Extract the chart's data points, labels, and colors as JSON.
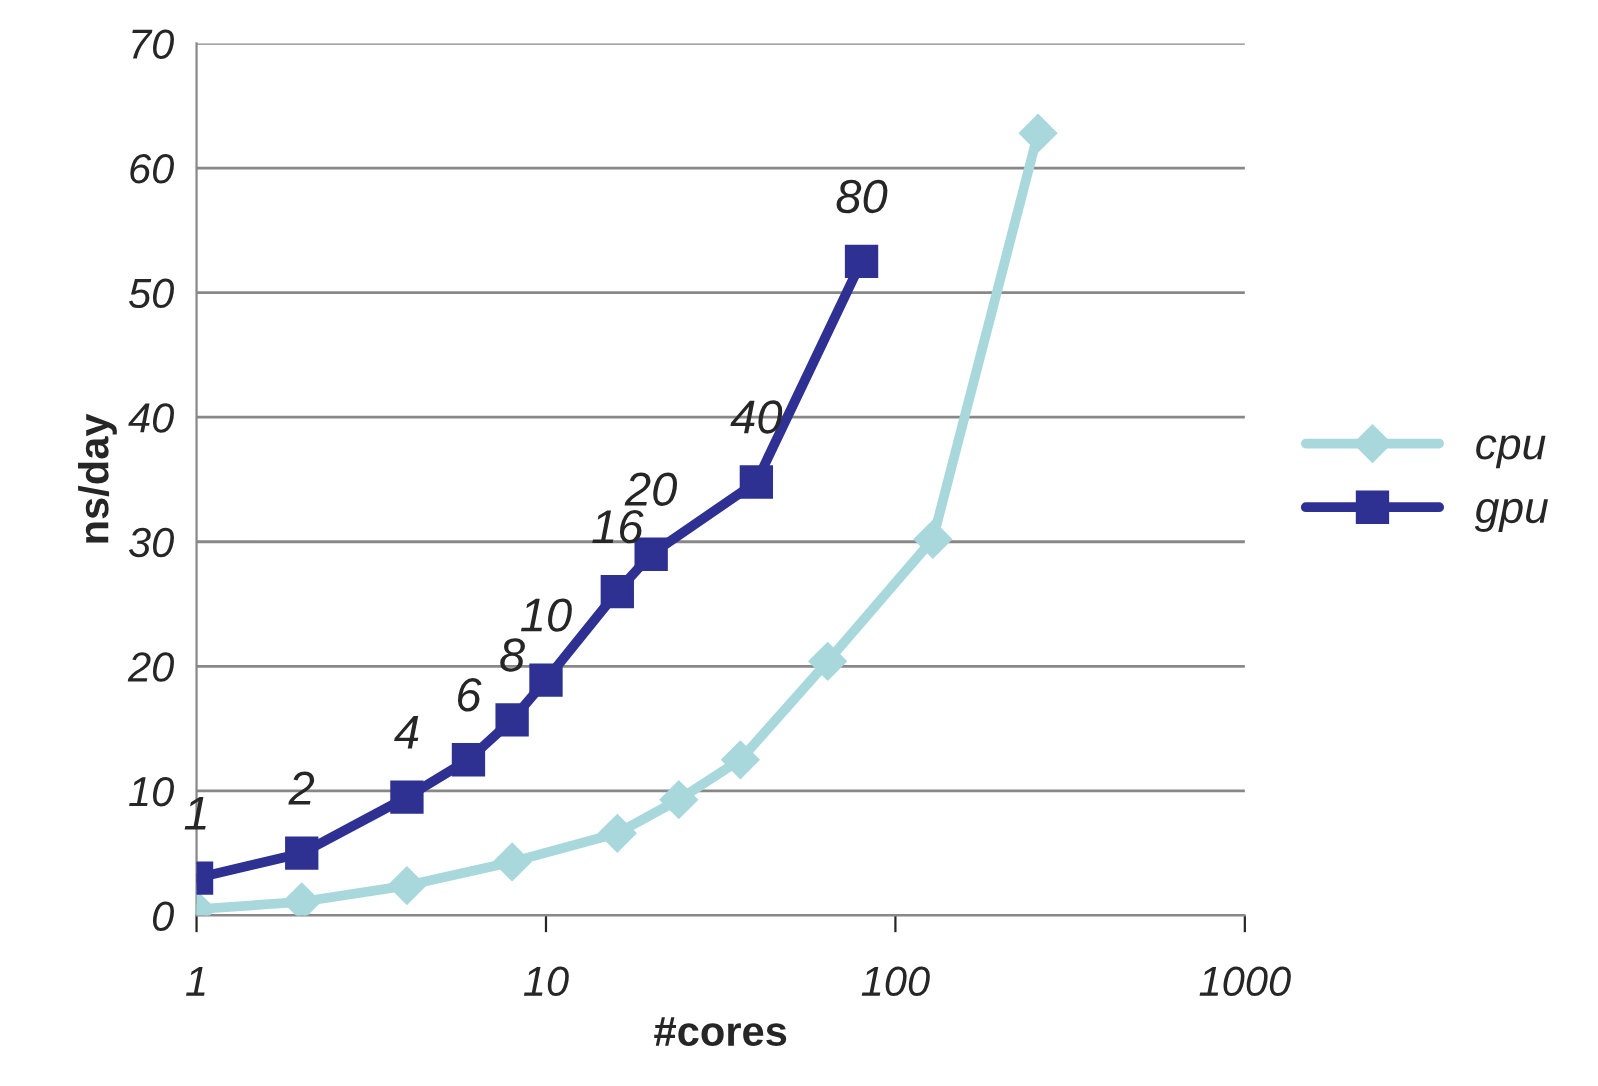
{
  "chart_data": {
    "type": "line",
    "xlabel": "#cores",
    "ylabel": "ns/day",
    "log": "x",
    "xlim": [
      1,
      1000
    ],
    "xticks": [
      1,
      10,
      100,
      1000
    ],
    "ylim": [
      0,
      70
    ],
    "yticks": [
      0,
      10,
      20,
      30,
      40,
      50,
      60,
      70
    ],
    "grid": "y",
    "legend": "right",
    "line_style": "solid",
    "series": [
      {
        "name": "cpu",
        "color": "#a8d8dc",
        "marker": "diamond",
        "x": [
          1,
          2,
          4,
          8,
          16,
          24,
          36,
          64,
          128,
          256
        ],
        "values": [
          0.5,
          1.1,
          2.4,
          4.3,
          6.6,
          9.3,
          12.5,
          20.4,
          30.2,
          62.8
        ]
      },
      {
        "name": "gpu",
        "color": "#2e3192",
        "marker": "square",
        "x": [
          1,
          2,
          4,
          6,
          8,
          10,
          16,
          20,
          40,
          80
        ],
        "values": [
          3.0,
          5.0,
          9.5,
          12.5,
          15.7,
          18.9,
          26.0,
          29.0,
          34.8,
          52.5
        ]
      }
    ],
    "annotations": [
      {
        "text": "1",
        "x": 1,
        "y": 3.0
      },
      {
        "text": "2",
        "x": 2,
        "y": 5.0
      },
      {
        "text": "4",
        "x": 4,
        "y": 9.5
      },
      {
        "text": "6",
        "x": 6,
        "y": 12.5
      },
      {
        "text": "8",
        "x": 8,
        "y": 15.7
      },
      {
        "text": "10",
        "x": 10,
        "y": 18.9
      },
      {
        "text": "16",
        "x": 16,
        "y": 26.0
      },
      {
        "text": "20",
        "x": 20,
        "y": 29.0
      },
      {
        "text": "40",
        "x": 40,
        "y": 34.8
      },
      {
        "text": "80",
        "x": 80,
        "y": 52.5
      }
    ]
  }
}
